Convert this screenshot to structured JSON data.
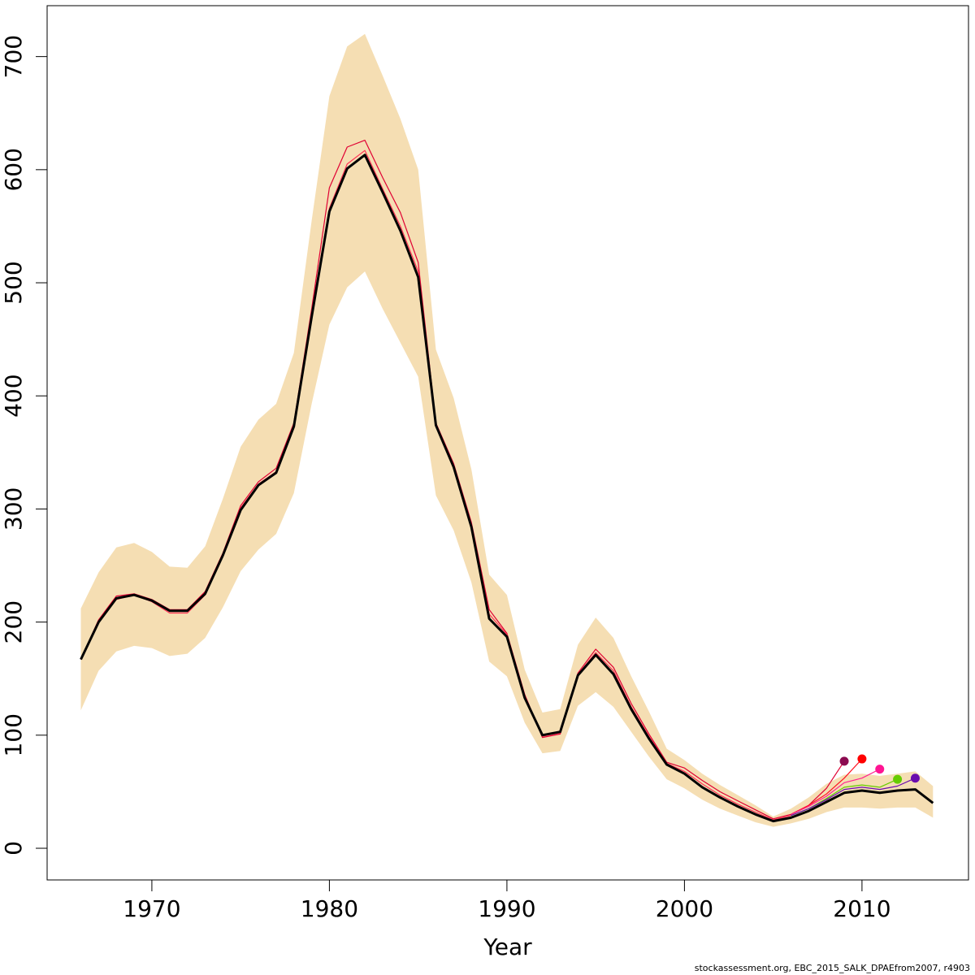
{
  "chart_data": {
    "type": "line",
    "title": "",
    "xlabel": "Year",
    "ylabel": "",
    "xlim": [
      1964.1,
      2016.0
    ],
    "ylim": [
      -28,
      745
    ],
    "x_ticks": [
      1970,
      1980,
      1990,
      2000,
      2010
    ],
    "y_ticks": [
      0,
      100,
      200,
      300,
      400,
      500,
      600,
      700
    ],
    "grid": false,
    "legend": "none",
    "band": {
      "color": "#f5deb3",
      "x": [
        1966,
        1967,
        1968,
        1969,
        1970,
        1971,
        1972,
        1973,
        1974,
        1975,
        1976,
        1977,
        1978,
        1979,
        1980,
        1981,
        1982,
        1983,
        1984,
        1985,
        1986,
        1987,
        1988,
        1989,
        1990,
        1991,
        1992,
        1993,
        1994,
        1995,
        1996,
        1997,
        1998,
        1999,
        2000,
        2001,
        2002,
        2003,
        2004,
        2005,
        2006,
        2007,
        2008,
        2009,
        2010,
        2011,
        2012,
        2013,
        2014
      ],
      "upper": [
        212,
        244,
        266,
        270,
        262,
        249,
        248,
        267,
        309,
        355,
        379,
        393,
        438,
        555,
        665,
        709,
        720,
        683,
        645,
        600,
        441,
        398,
        335,
        242,
        224,
        158,
        120,
        123,
        180,
        204,
        186,
        152,
        121,
        88,
        78,
        66,
        56,
        47,
        38,
        28,
        35,
        45,
        57,
        65,
        66,
        64,
        66,
        68,
        55
      ],
      "lower": [
        122,
        157,
        174,
        179,
        177,
        170,
        172,
        186,
        213,
        245,
        264,
        278,
        314,
        393,
        463,
        496,
        510,
        477,
        447,
        417,
        312,
        281,
        235,
        165,
        152,
        111,
        84,
        86,
        126,
        138,
        125,
        103,
        81,
        61,
        53,
        43,
        35,
        29,
        23,
        19,
        22,
        26,
        32,
        36,
        36,
        35,
        36,
        36,
        27
      ]
    },
    "series": [
      {
        "color": "#000000",
        "x": [
          1966,
          1967,
          1968,
          1969,
          1970,
          1971,
          1972,
          1973,
          1974,
          1975,
          1976,
          1977,
          1978,
          1979,
          1980,
          1981,
          1982,
          1983,
          1984,
          1985,
          1986,
          1987,
          1988,
          1989,
          1990,
          1991,
          1992,
          1993,
          1994,
          1995,
          1996,
          1997,
          1998,
          1999,
          2000,
          2001,
          2002,
          2003,
          2004,
          2005,
          2006,
          2007,
          2008,
          2009,
          2010,
          2011,
          2012,
          2013,
          2014
        ],
        "values": [
          167,
          200,
          221,
          224,
          219,
          210,
          210,
          225,
          259,
          299,
          321,
          332,
          373,
          470,
          563,
          601,
          613,
          580,
          546,
          505,
          374,
          337,
          284,
          203,
          187,
          133,
          100,
          103,
          153,
          171,
          154,
          123,
          97,
          74,
          66,
          54,
          45,
          37,
          30,
          24,
          27,
          33,
          41,
          49,
          51,
          49,
          51,
          52,
          40
        ]
      },
      {
        "color": "#e00033",
        "x": [
          1966,
          1967,
          1968,
          1969,
          1970,
          1971,
          1972,
          1973,
          1974,
          1975,
          1976,
          1977,
          1978,
          1979,
          1980,
          1981,
          1982,
          1983,
          1984,
          1985,
          1986,
          1987,
          1988,
          1989,
          1990,
          1991,
          1992,
          1993,
          1994,
          1995,
          1996,
          1997,
          1998,
          1999,
          2000,
          2001,
          2002,
          2003,
          2004,
          2005,
          2006,
          2007,
          2008,
          2009
        ],
        "values": [
          167,
          202,
          223,
          225,
          220,
          211,
          211,
          227,
          261,
          303,
          324,
          336,
          376,
          477,
          584,
          620,
          626,
          593,
          562,
          518,
          376,
          340,
          288,
          211,
          190,
          136,
          98,
          101,
          155,
          176,
          160,
          128,
          101,
          76,
          71,
          60,
          50,
          42,
          34,
          26,
          30,
          38,
          53,
          77
        ],
        "marker": "#8b0a50"
      },
      {
        "color": "#ff1020",
        "x": [
          2006,
          2007,
          2008,
          2009,
          2010
        ],
        "values": [
          30,
          38,
          48,
          62,
          79
        ],
        "marker": "#ff0000"
      },
      {
        "color": "#ff2090",
        "x": [
          2006,
          2007,
          2008,
          2009,
          2010,
          2011
        ],
        "values": [
          30,
          37,
          46,
          58,
          62,
          70
        ],
        "marker": "#ff1493"
      },
      {
        "color": "#66cc00",
        "x": [
          2006,
          2007,
          2008,
          2009,
          2010,
          2011,
          2012
        ],
        "values": [
          29,
          35,
          44,
          54,
          56,
          54,
          61
        ],
        "marker": "#66cc00"
      },
      {
        "color": "#6a0dad",
        "x": [
          2006,
          2007,
          2008,
          2009,
          2010,
          2011,
          2012,
          2013
        ],
        "values": [
          29,
          35,
          43,
          52,
          54,
          52,
          55,
          62
        ],
        "marker": "#6a0dad"
      },
      {
        "color": "#ff3355",
        "x": [
          1966,
          1967,
          1968,
          1969,
          1970,
          1971,
          1972,
          1973,
          1974,
          1975,
          1976,
          1977,
          1978,
          1979,
          1980,
          1981,
          1982,
          1983,
          1984,
          1985,
          1986,
          1987,
          1988,
          1989,
          1990,
          1991,
          1992,
          1993,
          1994,
          1995,
          1996,
          1997,
          1998,
          1999,
          2000,
          2001,
          2002,
          2003,
          2004,
          2005,
          2006
        ],
        "values": [
          167,
          201,
          220,
          224,
          218,
          208,
          208,
          224,
          259,
          301,
          322,
          333,
          374,
          474,
          566,
          605,
          617,
          583,
          550,
          510,
          375,
          338,
          286,
          207,
          189,
          134,
          99,
          102,
          154,
          173,
          157,
          125,
          99,
          75,
          68,
          57,
          47,
          39,
          32,
          25,
          29
        ]
      }
    ]
  },
  "footer_text": "stockassessment.org, EBC_2015_SALK_DPAEfrom2007, r4903"
}
